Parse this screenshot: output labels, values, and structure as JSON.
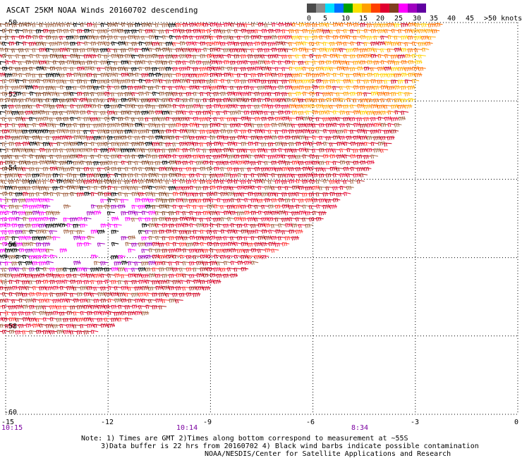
{
  "title": "ASCAT 25KM NOAA Winds 20160702 descending",
  "scale": {
    "labels": [
      "0",
      "5",
      "10",
      "15",
      "20",
      "25",
      "30",
      "35",
      "40",
      "45",
      ">50 knots"
    ],
    "colors": [
      "#4a4a4a",
      "#8c8c8c",
      "#00e0ff",
      "#0070ff",
      "#00a000",
      "#f8e000",
      "#ffa000",
      "#ff4000",
      "#e00030",
      "#804020",
      "#ff00ff",
      "#a000c0",
      "#6000a0"
    ]
  },
  "axes": {
    "x_ticks": [
      "-15",
      "-12",
      "-9",
      "-6",
      "-3",
      "0"
    ],
    "y_ticks": [
      "-50",
      "-52",
      "-54",
      "-56",
      "-58",
      "-60"
    ],
    "times": [
      "10:15",
      "10:14",
      "8:34"
    ]
  },
  "notes": [
    "Note: 1) Times are GMT 2)Times along bottom correspond to measurement at ~55S",
    "3)Data buffer is 22 hrs from 20160702 4) Black wind barbs indicate possible contamination",
    "NOAA/NESDIS/Center for Satellite Applications and Research"
  ],
  "wind_field": {
    "lon_range": [
      -15,
      0
    ],
    "lat_range": [
      -60,
      -50
    ],
    "swath_edge": [
      [
        -2,
        -50
      ],
      [
        -2.6,
        -51
      ],
      [
        -3,
        -52
      ],
      [
        -3.6,
        -53
      ],
      [
        -4.4,
        -54
      ],
      [
        -5.6,
        -55
      ],
      [
        -7.2,
        -56
      ],
      [
        -9.4,
        -57
      ],
      [
        -12.6,
        -58
      ],
      [
        -15,
        -58
      ]
    ],
    "gap_region": {
      "lon": [
        -13.5,
        -11
      ],
      "lat": [
        -56.2,
        -54.5
      ]
    },
    "palette": [
      "#d00020",
      "#e8103a",
      "#ff3030",
      "#a06040",
      "#804020",
      "#ff7000",
      "#ffa000",
      "#ffd000",
      "#b02020",
      "#ff00ff",
      "#a000c0",
      "#000000"
    ]
  }
}
